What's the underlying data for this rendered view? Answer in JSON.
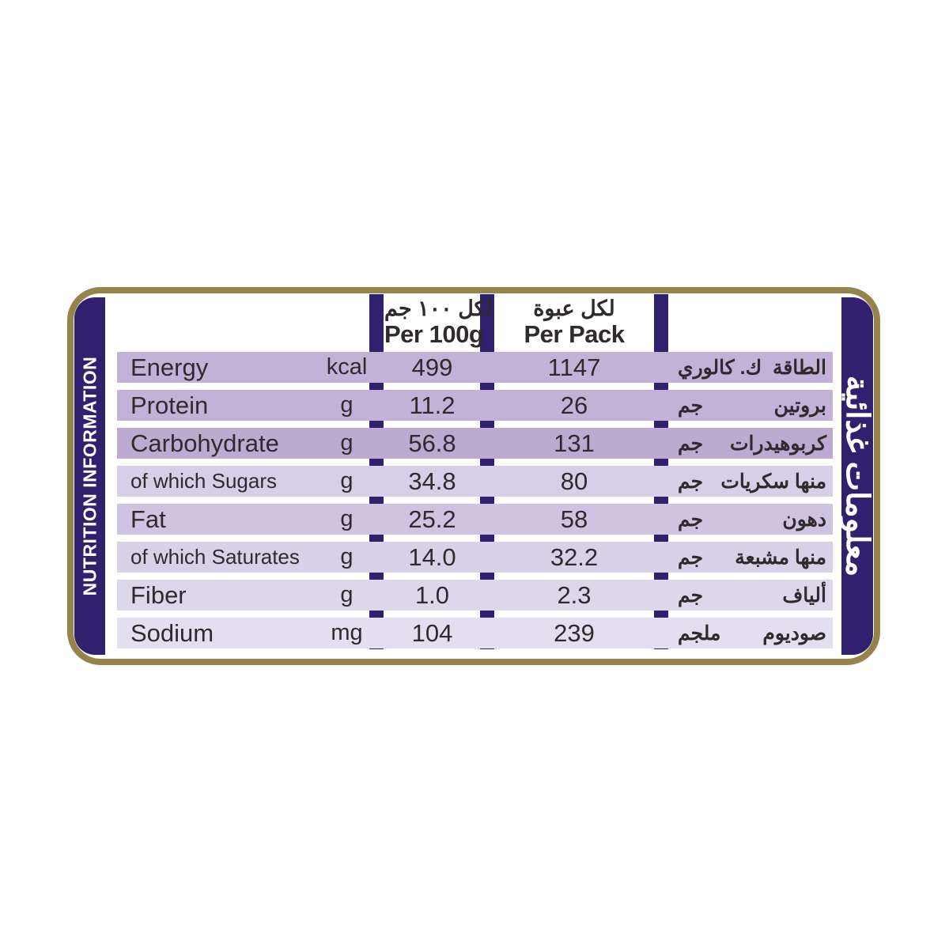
{
  "label": {
    "left_banner": {
      "text": "NUTRITION INFORMATION"
    },
    "right_banner": {
      "text": "معلومات غذائية"
    },
    "columns": {
      "per100": {
        "ar": "لكل ١٠٠ جم",
        "en": "Per 100g"
      },
      "perpack": {
        "ar": "لكل عبوة",
        "en": "Per Pack"
      }
    },
    "rows": [
      {
        "name": "Energy",
        "unit": "kcal",
        "per100": "499",
        "perpack": "1147",
        "ar_name": "الطاقة",
        "ar_unit": "ك. كالوري",
        "shade": "#c2b2d7",
        "sub": false
      },
      {
        "name": "Protein",
        "unit": "g",
        "per100": "11.2",
        "perpack": "26",
        "ar_name": "بروتين",
        "ar_unit": "جم",
        "shade": "#c2b2d7",
        "sub": false
      },
      {
        "name": "Carbohydrate",
        "unit": "g",
        "per100": "56.8",
        "perpack": "131",
        "ar_name": "كربوهيدرات",
        "ar_unit": "جم",
        "shade": "#bcaad1",
        "sub": false
      },
      {
        "name": "of which Sugars",
        "unit": "g",
        "per100": "34.8",
        "perpack": "80",
        "ar_name": "منها سكريات",
        "ar_unit": "جم",
        "shade": "#d7cee7",
        "sub": true
      },
      {
        "name": "Fat",
        "unit": "g",
        "per100": "25.2",
        "perpack": "58",
        "ar_name": "دهون",
        "ar_unit": "جم",
        "shade": "#cec3e0",
        "sub": false
      },
      {
        "name": "of which Saturates",
        "unit": "g",
        "per100": "14.0",
        "perpack": "32.2",
        "ar_name": "منها مشبعة",
        "ar_unit": "جم",
        "shade": "#d9d1e8",
        "sub": true
      },
      {
        "name": "Fiber",
        "unit": "g",
        "per100": "1.0",
        "perpack": "2.3",
        "ar_name": "ألياف",
        "ar_unit": "جم",
        "shade": "#ddd7eb",
        "sub": false
      },
      {
        "name": "Sodium",
        "unit": "mg",
        "per100": "104",
        "perpack": "239",
        "ar_name": "صوديوم",
        "ar_unit": "ملجم",
        "shade": "#e4dff0",
        "sub": false
      }
    ],
    "colors": {
      "purple": "#31206e",
      "gold": "#95834b",
      "text": "#2f2a2e"
    }
  }
}
